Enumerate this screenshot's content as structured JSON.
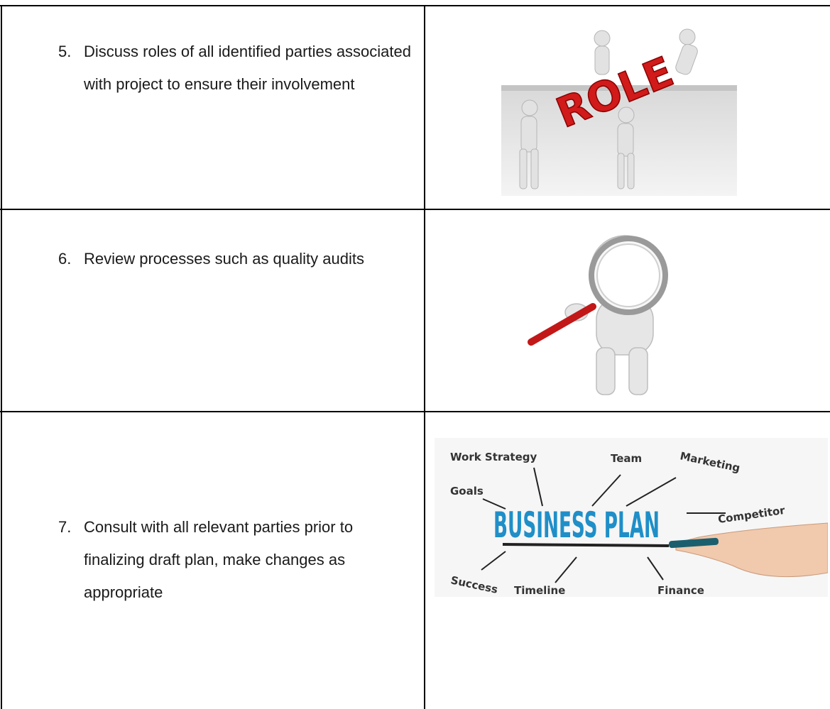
{
  "table": {
    "rows": [
      {
        "number": "5.",
        "text": "Discuss roles of all identified parties associated with project to ensure their involvement",
        "image": {
          "labels": [
            "ROLE"
          ]
        }
      },
      {
        "number": "6.",
        "text": "Review processes such as quality audits",
        "image": {
          "labels": []
        }
      },
      {
        "number": "7.",
        "text": "Consult with all relevant parties prior to finalizing draft plan, make changes as appropriate",
        "image": {
          "labels": [
            "BUSINESS PLAN",
            "Work Strategy",
            "Team",
            "Marketing",
            "Goals",
            "Competitor",
            "Success",
            "Timeline",
            "Finance"
          ]
        }
      }
    ]
  }
}
